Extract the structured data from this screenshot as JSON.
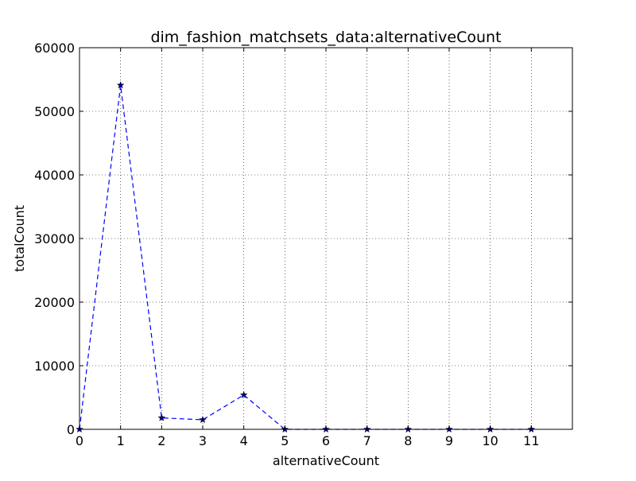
{
  "chart_data": {
    "type": "line",
    "title": "dim_fashion_matchsets_data:alternativeCount",
    "xlabel": "alternativeCount",
    "ylabel": "totalCount",
    "xlim": [
      0,
      12
    ],
    "ylim": [
      0,
      60000
    ],
    "x_ticks": [
      0,
      1,
      2,
      3,
      4,
      5,
      6,
      7,
      8,
      9,
      10,
      11
    ],
    "y_ticks": [
      0,
      10000,
      20000,
      30000,
      40000,
      50000,
      60000
    ],
    "grid": true,
    "legend": "none",
    "series": [
      {
        "x": [
          0,
          1,
          2,
          3,
          4,
          5,
          6,
          7,
          8,
          9,
          10,
          11
        ],
        "y": [
          0,
          54100,
          1800,
          1500,
          5400,
          0,
          0,
          0,
          0,
          0,
          0,
          0
        ],
        "color": "#0000ff",
        "line_style": "dashed",
        "marker": "star"
      }
    ]
  }
}
